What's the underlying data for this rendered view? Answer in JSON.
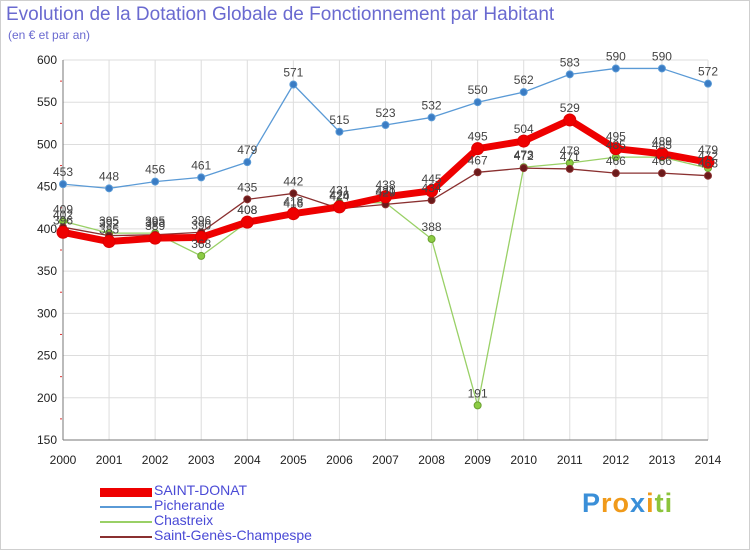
{
  "title": "Evolution de la Dotation Globale de Fonctionnement par Habitant",
  "subtitle": "(en € et par an)",
  "brand": {
    "text": "Proxiti",
    "letters": [
      "P",
      "r",
      "o",
      "x",
      "i",
      "t",
      "i"
    ],
    "colors": [
      "#3a8fd8",
      "#f09a1a",
      "#f09a1a",
      "#3a8fd8",
      "#f09a1a",
      "#8cc43c",
      "#8cc43c"
    ]
  },
  "chart_data": {
    "type": "line",
    "title": "Evolution de la Dotation Globale de Fonctionnement par Habitant",
    "subtitle": "(en € et par an)",
    "xlabel": "",
    "ylabel": "",
    "ylim": [
      150,
      600
    ],
    "yticks": [
      150,
      200,
      250,
      300,
      350,
      400,
      450,
      500,
      550,
      600
    ],
    "grid": true,
    "legend_position": "bottom-left",
    "categories": [
      "2000",
      "2001",
      "2002",
      "2003",
      "2004",
      "2005",
      "2006",
      "2007",
      "2008",
      "2009",
      "2010",
      "2011",
      "2012",
      "2013",
      "2014"
    ],
    "series": [
      {
        "name": "SAINT-DONAT",
        "color": "#ee0000",
        "values": [
          396,
          385,
          389,
          390,
          408,
          418,
          426,
          438,
          445,
          495,
          504,
          529,
          495,
          489,
          479
        ],
        "labels": [
          "396",
          "385",
          "389",
          "390",
          "408",
          "418",
          "426",
          "438",
          "445",
          "495",
          "504",
          "529",
          "495",
          "489",
          "479"
        ]
      },
      {
        "name": "Picherande",
        "color": "#5a9ad6",
        "values": [
          453,
          448,
          456,
          461,
          479,
          571,
          515,
          523,
          532,
          550,
          562,
          583,
          590,
          590,
          572
        ],
        "labels": [
          "453",
          "448",
          "456",
          "461",
          "479",
          "571",
          "515",
          "523",
          "532",
          "550",
          "562",
          "583",
          "590",
          "590",
          "572"
        ]
      },
      {
        "name": "Chastreix",
        "color": "#88cc44",
        "values": [
          409,
          395,
          395,
          368,
          408,
          416,
          431,
          431,
          388,
          191,
          473,
          478,
          485,
          485,
          472
        ],
        "labels": [
          "409",
          "395",
          "395",
          "368",
          "408",
          "416",
          "431",
          "431",
          "388",
          "191",
          "473",
          "478",
          "485",
          "485",
          "472"
        ]
      },
      {
        "name": "Saint-Genès-Champespe",
        "color": "#7a2a2a",
        "values": [
          402,
          392,
          393,
          396,
          435,
          442,
          424,
          429,
          434,
          467,
          472,
          471,
          466,
          466,
          463
        ],
        "labels": [
          "402",
          "392",
          "393",
          "396",
          "435",
          "442",
          "424",
          "429",
          "434",
          "467",
          "472",
          "471",
          "466",
          "466",
          "463"
        ]
      }
    ]
  }
}
